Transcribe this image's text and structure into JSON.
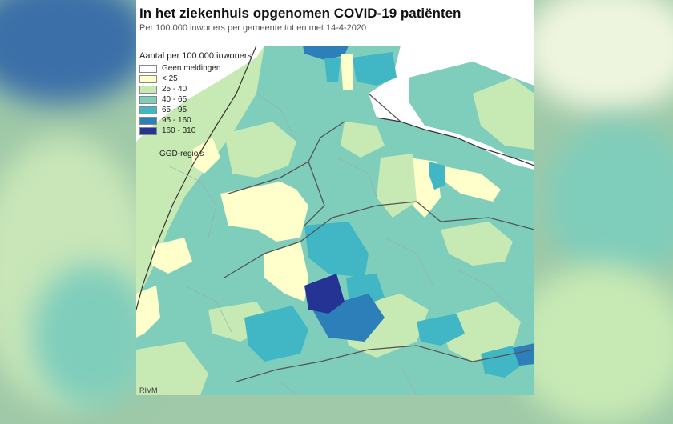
{
  "title": "In het ziekenhuis opgenomen COVID-19 patiënten",
  "subtitle": "Per 100.000 inwoners per gemeente tot en met 14-4-2020",
  "legend": {
    "title": "Aantal per 100.000 inwoners",
    "items": [
      {
        "label": "Geen meldingen",
        "color": "#ffffff"
      },
      {
        "label": "< 25",
        "color": "#ffffcc"
      },
      {
        "label": "25 - 40",
        "color": "#c7e9b4"
      },
      {
        "label": "40 - 65",
        "color": "#7fcdbb"
      },
      {
        "label": "65 - 95",
        "color": "#41b6c4"
      },
      {
        "label": "95 - 160",
        "color": "#2c7fb8"
      },
      {
        "label": "160 - 310",
        "color": "#253494"
      }
    ],
    "boundary_label": "GGD-regio's"
  },
  "credit": "RIVM"
}
